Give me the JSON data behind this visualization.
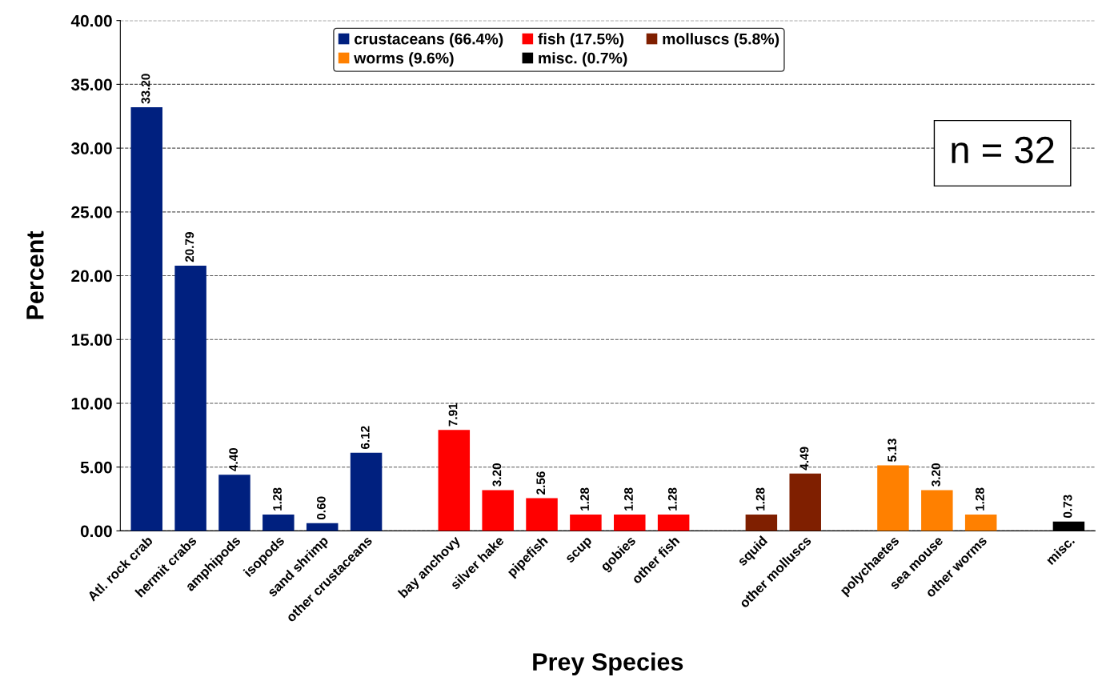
{
  "chart_data": {
    "type": "bar",
    "xlabel": "Prey Species",
    "ylabel": "Percent",
    "categories": [
      "Atl. rock crab",
      "hermit crabs",
      "amphipods",
      "isopods",
      "sand shrimp",
      "other crustaceans",
      null,
      "bay anchovy",
      "silver hake",
      "pipefish",
      "scup",
      "gobies",
      "other fish",
      null,
      "squid",
      "other molluscs",
      null,
      "polychaetes",
      "sea mouse",
      "other worms",
      null,
      "misc."
    ],
    "series": [
      {
        "name": "crustaceans (66.4%)",
        "color": "#00207f",
        "values": [
          33.2,
          20.79,
          4.4,
          1.28,
          0.6,
          6.12,
          null,
          null,
          null,
          null,
          null,
          null,
          null,
          null,
          null,
          null,
          null,
          null,
          null,
          null,
          null,
          null
        ],
        "value_labels": [
          "33.20",
          "20.79",
          "4.40",
          "1.28",
          "0.60",
          "6.12",
          null,
          null,
          null,
          null,
          null,
          null,
          null,
          null,
          null,
          null,
          null,
          null,
          null,
          null,
          null,
          null
        ]
      },
      {
        "name": "fish (17.5%)",
        "color": "#ff0000",
        "values": [
          null,
          null,
          null,
          null,
          null,
          null,
          null,
          7.91,
          3.2,
          2.56,
          1.28,
          1.28,
          1.28,
          null,
          null,
          null,
          null,
          null,
          null,
          null,
          null,
          null
        ],
        "value_labels": [
          null,
          null,
          null,
          null,
          null,
          null,
          null,
          "7.91",
          "3.20",
          "2.56",
          "1.28",
          "1.28",
          "1.28",
          null,
          null,
          null,
          null,
          null,
          null,
          null,
          null,
          null
        ]
      },
      {
        "name": "molluscs (5.8%)",
        "color": "#7f1f00",
        "values": [
          null,
          null,
          null,
          null,
          null,
          null,
          null,
          null,
          null,
          null,
          null,
          null,
          null,
          null,
          1.28,
          4.49,
          null,
          null,
          null,
          null,
          null,
          null
        ],
        "value_labels": [
          null,
          null,
          null,
          null,
          null,
          null,
          null,
          null,
          null,
          null,
          null,
          null,
          null,
          null,
          "1.28",
          "4.49",
          null,
          null,
          null,
          null,
          null,
          null
        ]
      },
      {
        "name": "worms (9.6%)",
        "color": "#ff8000",
        "values": [
          null,
          null,
          null,
          null,
          null,
          null,
          null,
          null,
          null,
          null,
          null,
          null,
          null,
          null,
          null,
          null,
          null,
          5.13,
          3.2,
          1.28,
          null,
          null
        ],
        "value_labels": [
          null,
          null,
          null,
          null,
          null,
          null,
          null,
          null,
          null,
          null,
          null,
          null,
          null,
          null,
          null,
          null,
          null,
          "5.13",
          "3.20",
          "1.28",
          null,
          null
        ]
      },
      {
        "name": "misc. (0.7%)",
        "color": "#000000",
        "values": [
          null,
          null,
          null,
          null,
          null,
          null,
          null,
          null,
          null,
          null,
          null,
          null,
          null,
          null,
          null,
          null,
          null,
          null,
          null,
          null,
          null,
          0.73
        ],
        "value_labels": [
          null,
          null,
          null,
          null,
          null,
          null,
          null,
          null,
          null,
          null,
          null,
          null,
          null,
          null,
          null,
          null,
          null,
          null,
          null,
          null,
          null,
          "0.73"
        ]
      }
    ],
    "ylim": [
      0,
      40
    ],
    "yticks": [
      {
        "value": 0,
        "label": "0.00"
      },
      {
        "value": 5,
        "label": "5.00"
      },
      {
        "value": 10,
        "label": "10.00"
      },
      {
        "value": 15,
        "label": "15.00"
      },
      {
        "value": 20,
        "label": "20.00"
      },
      {
        "value": 25,
        "label": "25.00"
      },
      {
        "value": 30,
        "label": "30.00"
      },
      {
        "value": 35,
        "label": "35.00"
      },
      {
        "value": 40,
        "label": "40.00"
      }
    ],
    "grid": "y",
    "legend": "top",
    "annotations": [
      "n = 32"
    ]
  }
}
